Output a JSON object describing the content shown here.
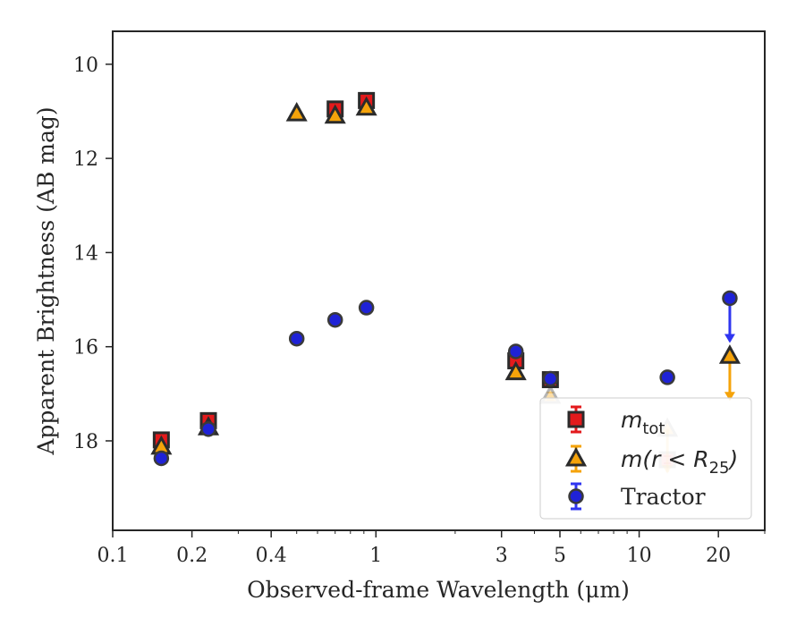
{
  "chart_data": {
    "type": "scatter",
    "title": "",
    "xlabel": "Observed-frame Wavelength (μm)",
    "ylabel": "Apparent Brightness (AB mag)",
    "x_scale": "log",
    "xlim": [
      0.1,
      30
    ],
    "ylim": [
      19.9,
      9.3
    ],
    "y_inverted": true,
    "x_ticks": [
      {
        "value": 0.1,
        "label": "0.1"
      },
      {
        "value": 0.2,
        "label": "0.2"
      },
      {
        "value": 0.4,
        "label": "0.4"
      },
      {
        "value": 1,
        "label": "1"
      },
      {
        "value": 3,
        "label": "3"
      },
      {
        "value": 5,
        "label": "5"
      },
      {
        "value": 10,
        "label": "10"
      },
      {
        "value": 20,
        "label": "20"
      }
    ],
    "y_ticks": [
      {
        "value": 10,
        "label": "10"
      },
      {
        "value": 12,
        "label": "12"
      },
      {
        "value": 14,
        "label": "14"
      },
      {
        "value": 16,
        "label": "16"
      },
      {
        "value": 18,
        "label": "18"
      }
    ],
    "grid": false,
    "legend_position": "lower-right",
    "series": [
      {
        "name": "m_tot",
        "legend_main": "m",
        "legend_sub": "tot",
        "marker": "square",
        "color": "#e31a1c",
        "edge": "#2b2b2b",
        "errcolor": "#e31a1c",
        "points": [
          {
            "x": 0.153,
            "y": 17.98
          },
          {
            "x": 0.231,
            "y": 17.57
          },
          {
            "x": 0.7,
            "y": 10.95
          },
          {
            "x": 0.92,
            "y": 10.77
          },
          {
            "x": 3.4,
            "y": 16.3
          },
          {
            "x": 4.6,
            "y": 16.7
          },
          {
            "x": 12.8,
            "y": 18.4,
            "faded": true
          }
        ]
      },
      {
        "name": "m(r < R25)",
        "legend_main": "m(r < R",
        "legend_sub": "25",
        "legend_end": ")",
        "marker": "triangle",
        "color": "#f5a30a",
        "edge": "#2b2b2b",
        "errcolor": "#f5a30a",
        "points": [
          {
            "x": 0.153,
            "y": 18.13
          },
          {
            "x": 0.231,
            "y": 17.72
          },
          {
            "x": 0.5,
            "y": 11.05
          },
          {
            "x": 0.7,
            "y": 11.1
          },
          {
            "x": 0.92,
            "y": 10.93
          },
          {
            "x": 3.4,
            "y": 16.55
          },
          {
            "x": 4.6,
            "y": 17.05,
            "faded": true
          },
          {
            "x": 12.8,
            "y": 17.75,
            "faded": true,
            "upper_limit": true
          },
          {
            "x": 22.1,
            "y": 16.2,
            "upper_limit": true
          }
        ]
      },
      {
        "name": "Tractor",
        "legend_main": "Tractor",
        "marker": "circle",
        "color": "#1f22d6",
        "edge": "#3a3a3a",
        "errcolor": "#2f35f0",
        "points": [
          {
            "x": 0.153,
            "y": 18.37
          },
          {
            "x": 0.231,
            "y": 17.75
          },
          {
            "x": 0.5,
            "y": 15.83
          },
          {
            "x": 0.7,
            "y": 15.43
          },
          {
            "x": 0.92,
            "y": 15.17
          },
          {
            "x": 3.4,
            "y": 16.1
          },
          {
            "x": 4.6,
            "y": 16.68
          },
          {
            "x": 12.8,
            "y": 16.65
          },
          {
            "x": 22.1,
            "y": 14.97,
            "upper_limit": true
          }
        ]
      }
    ]
  }
}
